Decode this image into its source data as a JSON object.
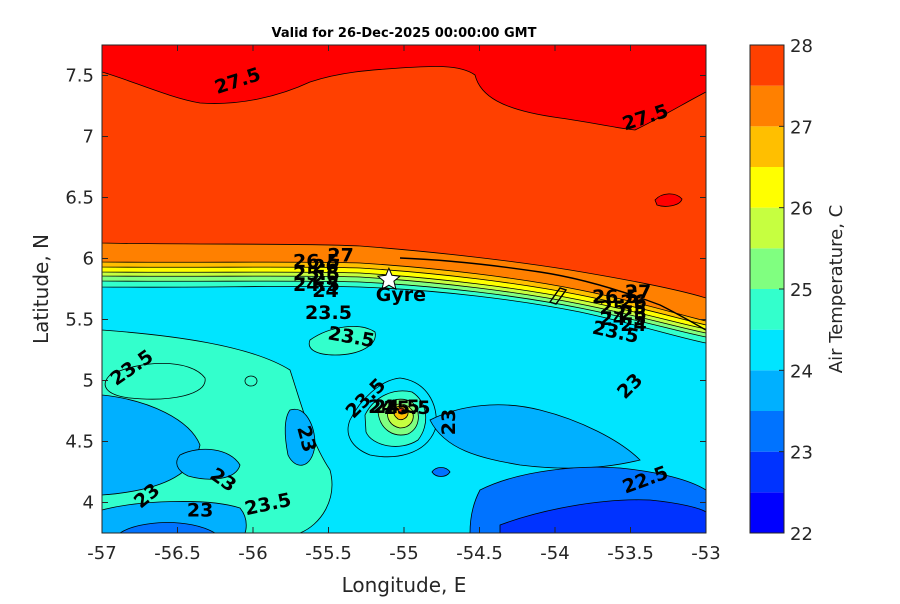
{
  "chart_data": {
    "type": "filled-contour",
    "title": "Valid for 26-Dec-2025 00:00:00 GMT",
    "xlabel": "Longitude, E",
    "ylabel": "Latitude, N",
    "xlim": [
      -57,
      -53
    ],
    "ylim": [
      3.75,
      7.75
    ],
    "xticks": [
      "-57",
      "-56.5",
      "-56",
      "-55.5",
      "-55",
      "-54.5",
      "-54",
      "-53.5",
      "-53"
    ],
    "yticks": [
      "4",
      "4.5",
      "5",
      "5.5",
      "6",
      "6.5",
      "7",
      "7.5"
    ],
    "colorbar": {
      "label": "Air Temperature, C",
      "ticks": [
        "22",
        "23",
        "24",
        "25",
        "26",
        "27",
        "28"
      ],
      "levels": [
        22,
        22.5,
        23,
        23.5,
        24,
        24.5,
        25,
        25.5,
        26,
        26.5,
        27,
        27.5,
        28
      ],
      "colors": [
        "#0000ff",
        "#0033ff",
        "#0073ff",
        "#00b0ff",
        "#00e5ff",
        "#33ffcc",
        "#80ff80",
        "#c6ff40",
        "#ffff00",
        "#ffbf00",
        "#ff8000",
        "#ff4000",
        "#ff0000"
      ]
    },
    "marker": {
      "name": "Gyre",
      "lon": -55.1,
      "lat": 5.83
    },
    "contour_labels": [
      {
        "text": "27.5",
        "lon": -56.1,
        "lat": 7.45,
        "angle": -18
      },
      {
        "text": "27.5",
        "lon": -53.4,
        "lat": 7.15,
        "angle": -18
      },
      {
        "text": "27",
        "lon": -55.42,
        "lat": 6.02,
        "angle": 0
      },
      {
        "text": "26.5",
        "lon": -55.58,
        "lat": 5.97,
        "angle": 0
      },
      {
        "text": "26",
        "lon": -55.52,
        "lat": 5.93,
        "angle": 0
      },
      {
        "text": "25.5",
        "lon": -55.58,
        "lat": 5.87,
        "angle": 0
      },
      {
        "text": "25",
        "lon": -55.52,
        "lat": 5.83,
        "angle": 0
      },
      {
        "text": "24.5",
        "lon": -55.58,
        "lat": 5.78,
        "angle": 0
      },
      {
        "text": "24",
        "lon": -55.52,
        "lat": 5.73,
        "angle": 0
      },
      {
        "text": "23.5",
        "lon": -55.5,
        "lat": 5.55,
        "angle": 0
      },
      {
        "text": "23.5",
        "lon": -55.35,
        "lat": 5.35,
        "angle": 10
      },
      {
        "text": "27",
        "lon": -53.45,
        "lat": 5.72,
        "angle": 0
      },
      {
        "text": "26.5",
        "lon": -53.6,
        "lat": 5.68,
        "angle": 0
      },
      {
        "text": "26",
        "lon": -53.48,
        "lat": 5.64,
        "angle": 0
      },
      {
        "text": "25.5",
        "lon": -53.55,
        "lat": 5.59,
        "angle": 0
      },
      {
        "text": "25",
        "lon": -53.48,
        "lat": 5.54,
        "angle": 0
      },
      {
        "text": "24.5",
        "lon": -53.55,
        "lat": 5.5,
        "angle": 0
      },
      {
        "text": "24",
        "lon": -53.48,
        "lat": 5.45,
        "angle": 0
      },
      {
        "text": "23.5",
        "lon": -53.6,
        "lat": 5.39,
        "angle": 12
      },
      {
        "text": "23.5",
        "lon": -56.8,
        "lat": 5.1,
        "angle": -35
      },
      {
        "text": "23.5",
        "lon": -55.25,
        "lat": 4.85,
        "angle": -45
      },
      {
        "text": "24",
        "lon": -55.15,
        "lat": 4.78,
        "angle": 0
      },
      {
        "text": "24.5",
        "lon": -55.05,
        "lat": 4.78,
        "angle": 0
      },
      {
        "text": "25.5",
        "lon": -54.98,
        "lat": 4.77,
        "angle": 0
      },
      {
        "text": "23",
        "lon": -54.7,
        "lat": 4.66,
        "angle": -90
      },
      {
        "text": "23",
        "lon": -55.65,
        "lat": 4.52,
        "angle": 75
      },
      {
        "text": "23",
        "lon": -56.2,
        "lat": 4.18,
        "angle": 35
      },
      {
        "text": "23",
        "lon": -56.7,
        "lat": 4.05,
        "angle": -40
      },
      {
        "text": "23",
        "lon": -56.35,
        "lat": 3.93,
        "angle": 0
      },
      {
        "text": "23.5",
        "lon": -55.9,
        "lat": 3.98,
        "angle": -12
      },
      {
        "text": "23",
        "lon": -53.5,
        "lat": 4.95,
        "angle": -45
      },
      {
        "text": "22.5",
        "lon": -53.4,
        "lat": 4.18,
        "angle": -20
      }
    ]
  }
}
